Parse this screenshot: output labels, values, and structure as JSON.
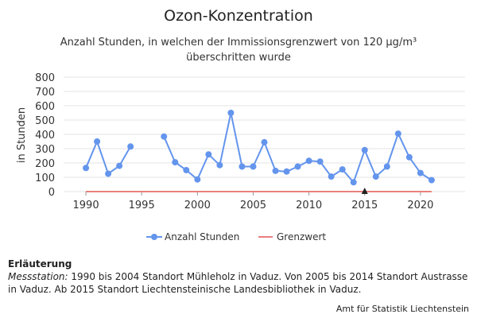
{
  "chart_data": {
    "type": "line",
    "title": "Ozon-Konzentration",
    "subtitle_lines": [
      "Anzahl Stunden, in welchen der Immissionsgrenzwert von 120 µg/m³",
      "überschritten wurde"
    ],
    "ylabel": "in Stunden",
    "xlabel": "",
    "ylim": [
      0,
      800
    ],
    "yticks": [
      0,
      100,
      200,
      300,
      400,
      500,
      600,
      700,
      800
    ],
    "xlim": [
      1988,
      2024
    ],
    "xticks": [
      1990,
      1995,
      2000,
      2005,
      2010,
      2015,
      2020
    ],
    "grid": "horizontal",
    "legend_position": "bottom",
    "series": [
      {
        "name": "Anzahl Stunden",
        "color": "#6495ED",
        "points": [
          [
            1990,
            165
          ],
          [
            1991,
            350
          ],
          [
            1992,
            125
          ],
          [
            1993,
            180
          ],
          [
            1994,
            315
          ],
          [
            1997,
            385
          ],
          [
            1998,
            205
          ],
          [
            1999,
            150
          ],
          [
            2000,
            85
          ],
          [
            2001,
            260
          ],
          [
            2002,
            185
          ],
          [
            2003,
            550
          ],
          [
            2004,
            175
          ],
          [
            2005,
            175
          ],
          [
            2006,
            345
          ],
          [
            2007,
            145
          ],
          [
            2008,
            140
          ],
          [
            2009,
            175
          ],
          [
            2010,
            215
          ],
          [
            2011,
            210
          ],
          [
            2012,
            105
          ],
          [
            2013,
            155
          ],
          [
            2014,
            65
          ],
          [
            2015,
            290
          ],
          [
            2016,
            105
          ],
          [
            2017,
            175
          ],
          [
            2018,
            405
          ],
          [
            2019,
            240
          ],
          [
            2020,
            130
          ],
          [
            2021,
            80
          ]
        ],
        "segments": [
          [
            1990,
            1994
          ],
          [
            1997,
            2021
          ]
        ]
      },
      {
        "name": "Grenzwert",
        "color": "#E8807F",
        "points": [
          [
            1990,
            0
          ],
          [
            2021,
            0
          ]
        ]
      }
    ],
    "markers": [
      {
        "x": 2015,
        "y": 0,
        "symbol": "triangle",
        "color": "#222222"
      }
    ]
  },
  "note": {
    "heading": "Erläuterung",
    "lead": "Messstation:",
    "text": " 1990 bis 2004 Standort Mühleholz in Vaduz. Von 2005 bis 2014 Standort Austrasse in Vaduz. Ab 2015 Standort Liechtensteinische Landesbibliothek in Vaduz."
  },
  "source": "Amt für Statistik Liechtenstein"
}
